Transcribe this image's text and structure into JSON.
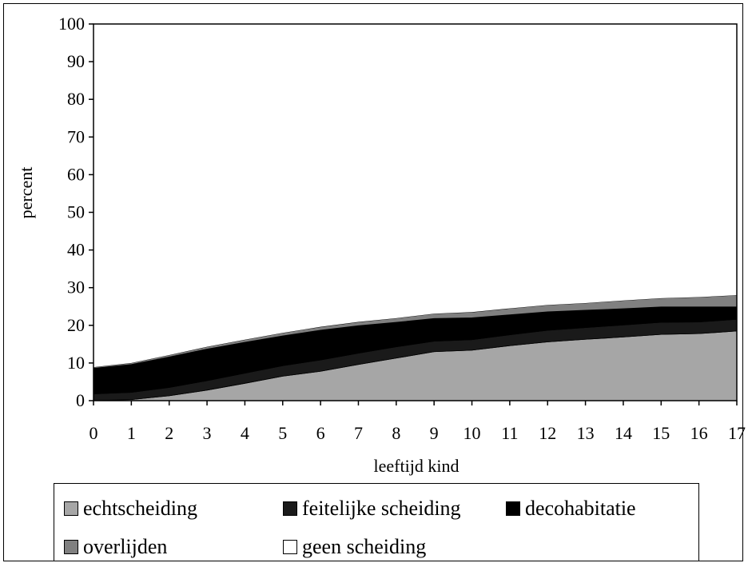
{
  "chart_data": {
    "type": "area",
    "stacked": true,
    "xlabel": "leeftijd kind",
    "ylabel": "percent",
    "ylim": [
      0,
      100
    ],
    "yticks": [
      0,
      10,
      20,
      30,
      40,
      50,
      60,
      70,
      80,
      90,
      100
    ],
    "x": [
      0,
      1,
      2,
      3,
      4,
      5,
      6,
      7,
      8,
      9,
      10,
      11,
      12,
      13,
      14,
      15,
      16,
      17
    ],
    "grid": false,
    "legend_position": "bottom",
    "series": [
      {
        "name": "echtscheiding",
        "color": "#a6a6a6",
        "values": [
          0,
          0.3,
          1.3,
          2.8,
          4.6,
          6.5,
          7.8,
          9.6,
          11.3,
          13.0,
          13.4,
          14.6,
          15.6,
          16.3,
          16.9,
          17.6,
          17.8,
          18.5
        ]
      },
      {
        "name": "feitelijke scheiding",
        "color": "#1a1a1a",
        "values": [
          1.8,
          1.9,
          2.2,
          2.5,
          2.7,
          2.8,
          3.0,
          3.0,
          3.0,
          2.8,
          2.8,
          2.9,
          3.1,
          3.1,
          3.2,
          3.2,
          3.1,
          3.1
        ]
      },
      {
        "name": "decohabitatie",
        "color": "#000000",
        "values": [
          6.8,
          7.4,
          8.1,
          8.4,
          8.2,
          7.9,
          7.9,
          7.3,
          6.5,
          6.0,
          5.8,
          5.3,
          4.9,
          4.6,
          4.3,
          4.1,
          4.0,
          3.3
        ]
      },
      {
        "name": "overlijden",
        "color": "#808080",
        "values": [
          0.3,
          0.4,
          0.5,
          0.6,
          0.7,
          0.8,
          0.9,
          1.0,
          1.1,
          1.3,
          1.5,
          1.7,
          1.8,
          1.9,
          2.2,
          2.3,
          2.6,
          3.1
        ]
      },
      {
        "name": "geen scheiding",
        "color": "#ffffff",
        "values": [
          91.1,
          90.0,
          87.9,
          85.7,
          83.8,
          82.0,
          80.4,
          79.1,
          78.1,
          76.9,
          76.5,
          75.5,
          74.6,
          74.1,
          73.4,
          72.8,
          72.5,
          72.0
        ]
      }
    ]
  },
  "legend": {
    "items": [
      {
        "label": "echtscheiding",
        "color": "#a6a6a6"
      },
      {
        "label": "feitelijke scheiding",
        "color": "#1a1a1a"
      },
      {
        "label": "decohabitatie",
        "color": "#000000"
      },
      {
        "label": "overlijden",
        "color": "#808080"
      },
      {
        "label": "geen scheiding",
        "color": "#ffffff"
      }
    ]
  }
}
